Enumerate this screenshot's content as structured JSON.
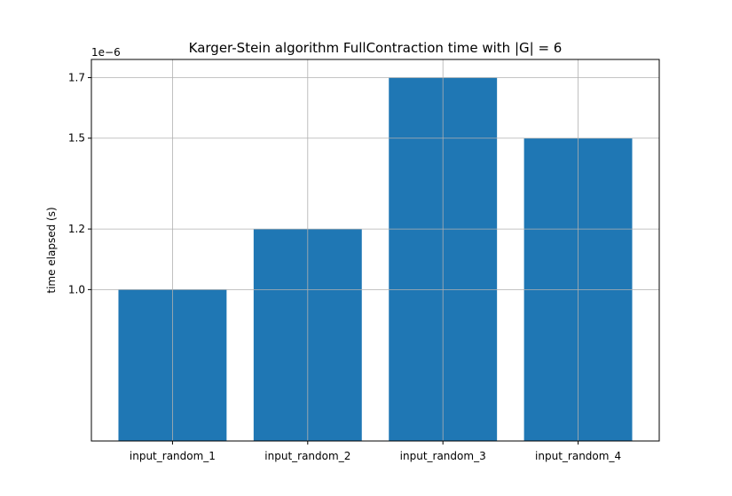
{
  "chart_data": {
    "type": "bar",
    "title": "Karger-Stein algorithm FullContraction time with |G| = 6",
    "xlabel": "",
    "ylabel": "time elapsed (s)",
    "scale_label": "1e−6",
    "categories": [
      "input_random_1",
      "input_random_2",
      "input_random_3",
      "input_random_4"
    ],
    "values": [
      1e-06,
      1.2e-06,
      1.7e-06,
      1.5e-06
    ],
    "yticks": [
      1.0,
      1.2,
      1.5,
      1.7
    ],
    "ytick_labels": [
      "1.0",
      "1.2",
      "1.5",
      "1.7"
    ],
    "ylim": [
      5e-07,
      1.76e-06
    ],
    "grid": true,
    "bar_color": "#1f77b4"
  }
}
